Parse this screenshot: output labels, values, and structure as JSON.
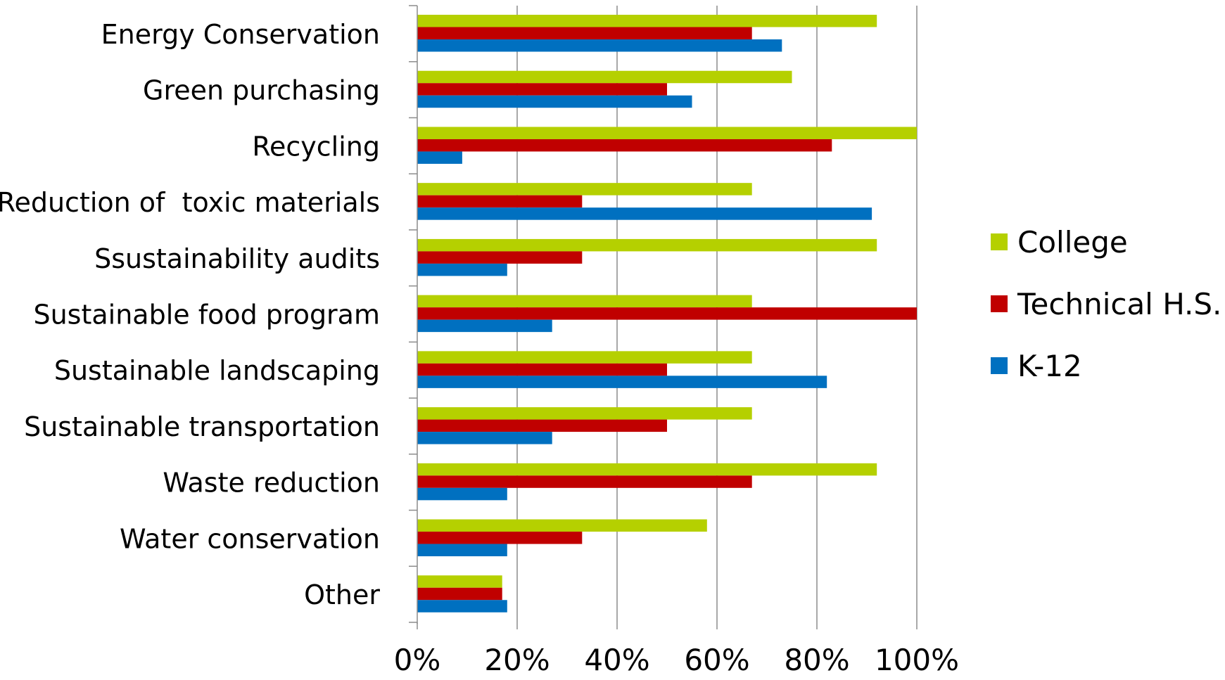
{
  "chart_data": {
    "type": "bar",
    "orientation": "horizontal",
    "title": "",
    "xlabel": "",
    "ylabel": "",
    "xlim": [
      0,
      1
    ],
    "x_ticks": [
      "0%",
      "20%",
      "40%",
      "60%",
      "80%",
      "100%"
    ],
    "grid": "vertical",
    "legend_position": "right",
    "categories": [
      "Energy Conservation",
      "Green purchasing",
      "Recycling",
      "Reduction of  toxic materials",
      "Ssustainability audits",
      "Sustainable food program",
      "Sustainable landscaping",
      "Sustainable transportation",
      "Waste reduction",
      "Water conservation",
      "Other"
    ],
    "series": [
      {
        "name": "College",
        "color": "#b5d000",
        "values": [
          0.92,
          0.75,
          1.0,
          0.67,
          0.92,
          0.67,
          0.67,
          0.67,
          0.92,
          0.58,
          0.17
        ]
      },
      {
        "name": "Technical H.S.",
        "color": "#c00000",
        "values": [
          0.67,
          0.5,
          0.83,
          0.33,
          0.33,
          1.0,
          0.5,
          0.5,
          0.67,
          0.33,
          0.17
        ]
      },
      {
        "name": "K-12",
        "color": "#0070c0",
        "values": [
          0.73,
          0.55,
          0.09,
          0.91,
          0.18,
          0.27,
          0.82,
          0.27,
          0.18,
          0.18,
          0.18
        ]
      }
    ]
  }
}
